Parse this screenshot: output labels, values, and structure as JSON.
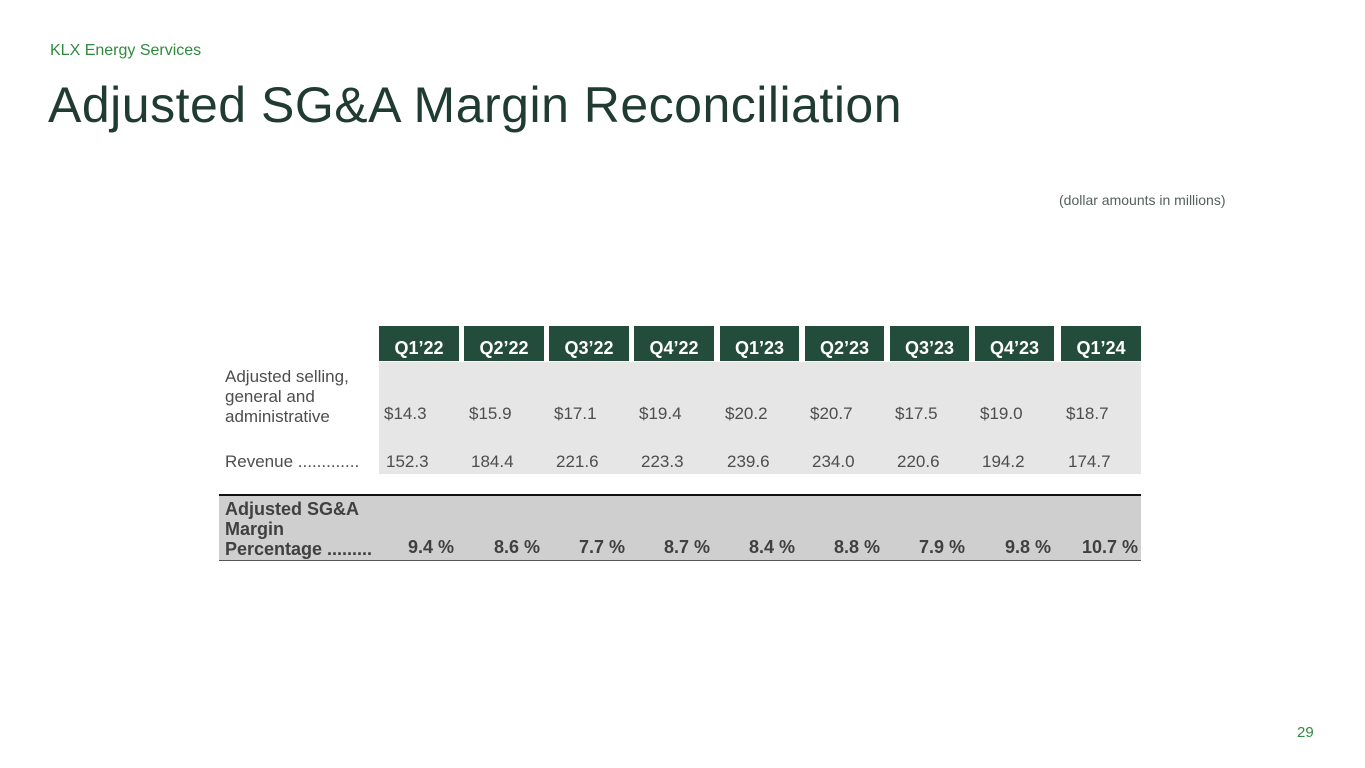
{
  "header": {
    "company": "KLX Energy Services",
    "title": "Adjusted SG&A Margin Reconciliation",
    "units_note": "(dollar amounts in millions)"
  },
  "table": {
    "quarters": [
      "Q1’22",
      "Q2’22",
      "Q3’22",
      "Q4’22",
      "Q1’23",
      "Q2’23",
      "Q3’23",
      "Q4’23",
      "Q1’24"
    ],
    "rows": [
      {
        "label": "Adjusted selling, general and administrative",
        "values": [
          "$14.3",
          "$15.9",
          "$17.1",
          "$19.4",
          "$20.2",
          "$20.7",
          "$17.5",
          "$19.0",
          "$18.7"
        ]
      },
      {
        "label": "Revenue .............",
        "values": [
          "152.3",
          "184.4",
          "221.6",
          "223.3",
          "239.6",
          "234.0",
          "220.6",
          "194.2",
          "174.7"
        ]
      }
    ],
    "total_row": {
      "label": "Adjusted SG&A Margin Percentage .........",
      "values": [
        "9.4 %",
        "8.6 %",
        "7.7 %",
        "8.7 %",
        "8.4 %",
        "8.8 %",
        "7.9 %",
        "9.8 %",
        "10.7 %"
      ]
    }
  },
  "footer": {
    "page_number": "29"
  }
}
